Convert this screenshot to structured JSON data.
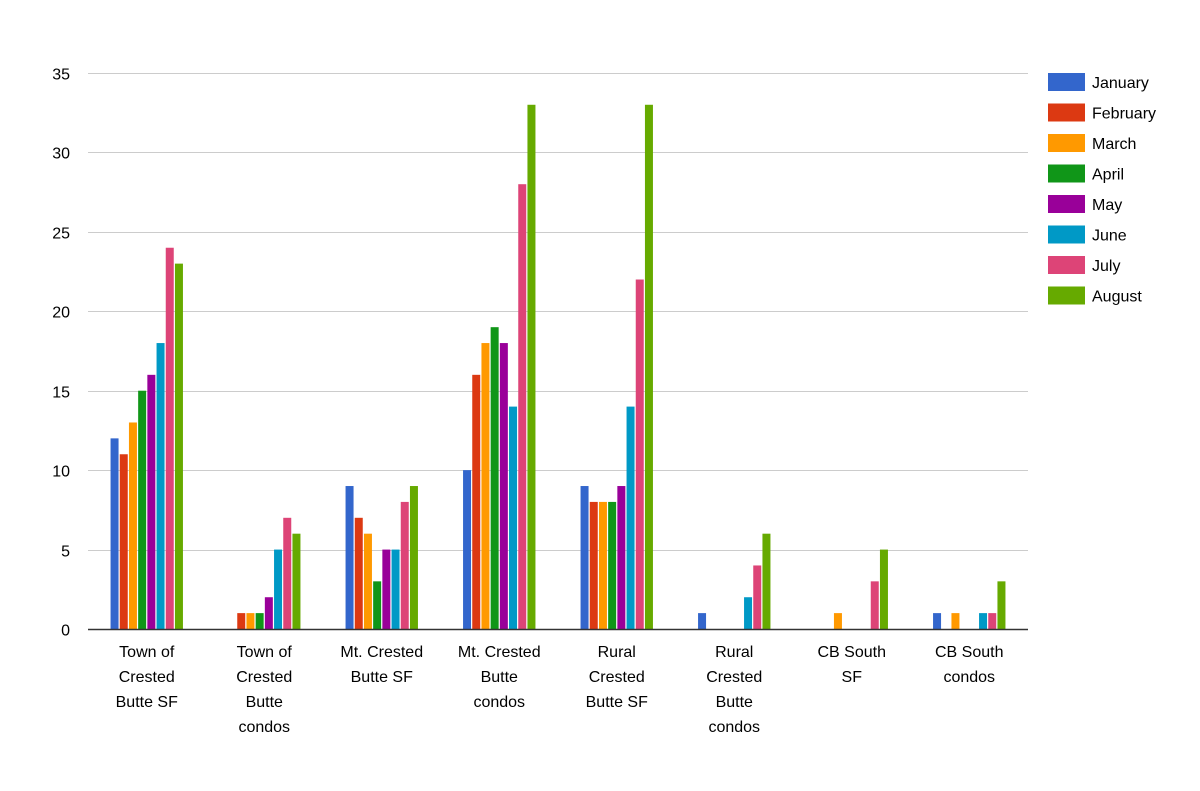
{
  "chart_data": {
    "type": "bar",
    "title": "",
    "xlabel": "",
    "ylabel": "",
    "ylim": [
      0,
      35
    ],
    "yticks": [
      0,
      5,
      10,
      15,
      20,
      25,
      30,
      35
    ],
    "grid": true,
    "legend_position": "right",
    "categories": [
      [
        "Town of",
        "Crested",
        "Butte SF"
      ],
      [
        "Town of",
        "Crested",
        "Butte",
        "condos"
      ],
      [
        "Mt. Crested",
        "Butte SF"
      ],
      [
        "Mt. Crested",
        "Butte",
        "condos"
      ],
      [
        "Rural",
        "Crested",
        "Butte SF"
      ],
      [
        "Rural",
        "Crested",
        "Butte",
        "condos"
      ],
      [
        "CB South",
        "SF"
      ],
      [
        "CB South",
        "condos"
      ]
    ],
    "series": [
      {
        "name": "January",
        "color": "#3366cc",
        "values": [
          12,
          0,
          9,
          10,
          9,
          1,
          0,
          1
        ]
      },
      {
        "name": "February",
        "color": "#dc3912",
        "values": [
          11,
          1,
          7,
          16,
          8,
          0,
          0,
          0
        ]
      },
      {
        "name": "March",
        "color": "#ff9900",
        "values": [
          13,
          1,
          6,
          18,
          8,
          0,
          1,
          1
        ]
      },
      {
        "name": "April",
        "color": "#109618",
        "values": [
          15,
          1,
          3,
          19,
          8,
          0,
          0,
          0
        ]
      },
      {
        "name": "May",
        "color": "#990099",
        "values": [
          16,
          2,
          5,
          18,
          9,
          0,
          0,
          0
        ]
      },
      {
        "name": "June",
        "color": "#0099c6",
        "values": [
          18,
          5,
          5,
          14,
          14,
          2,
          0,
          1
        ]
      },
      {
        "name": "July",
        "color": "#dd4477",
        "values": [
          24,
          7,
          8,
          28,
          22,
          4,
          3,
          1
        ]
      },
      {
        "name": "August",
        "color": "#66aa00",
        "values": [
          23,
          6,
          9,
          33,
          33,
          6,
          5,
          3
        ]
      }
    ]
  }
}
